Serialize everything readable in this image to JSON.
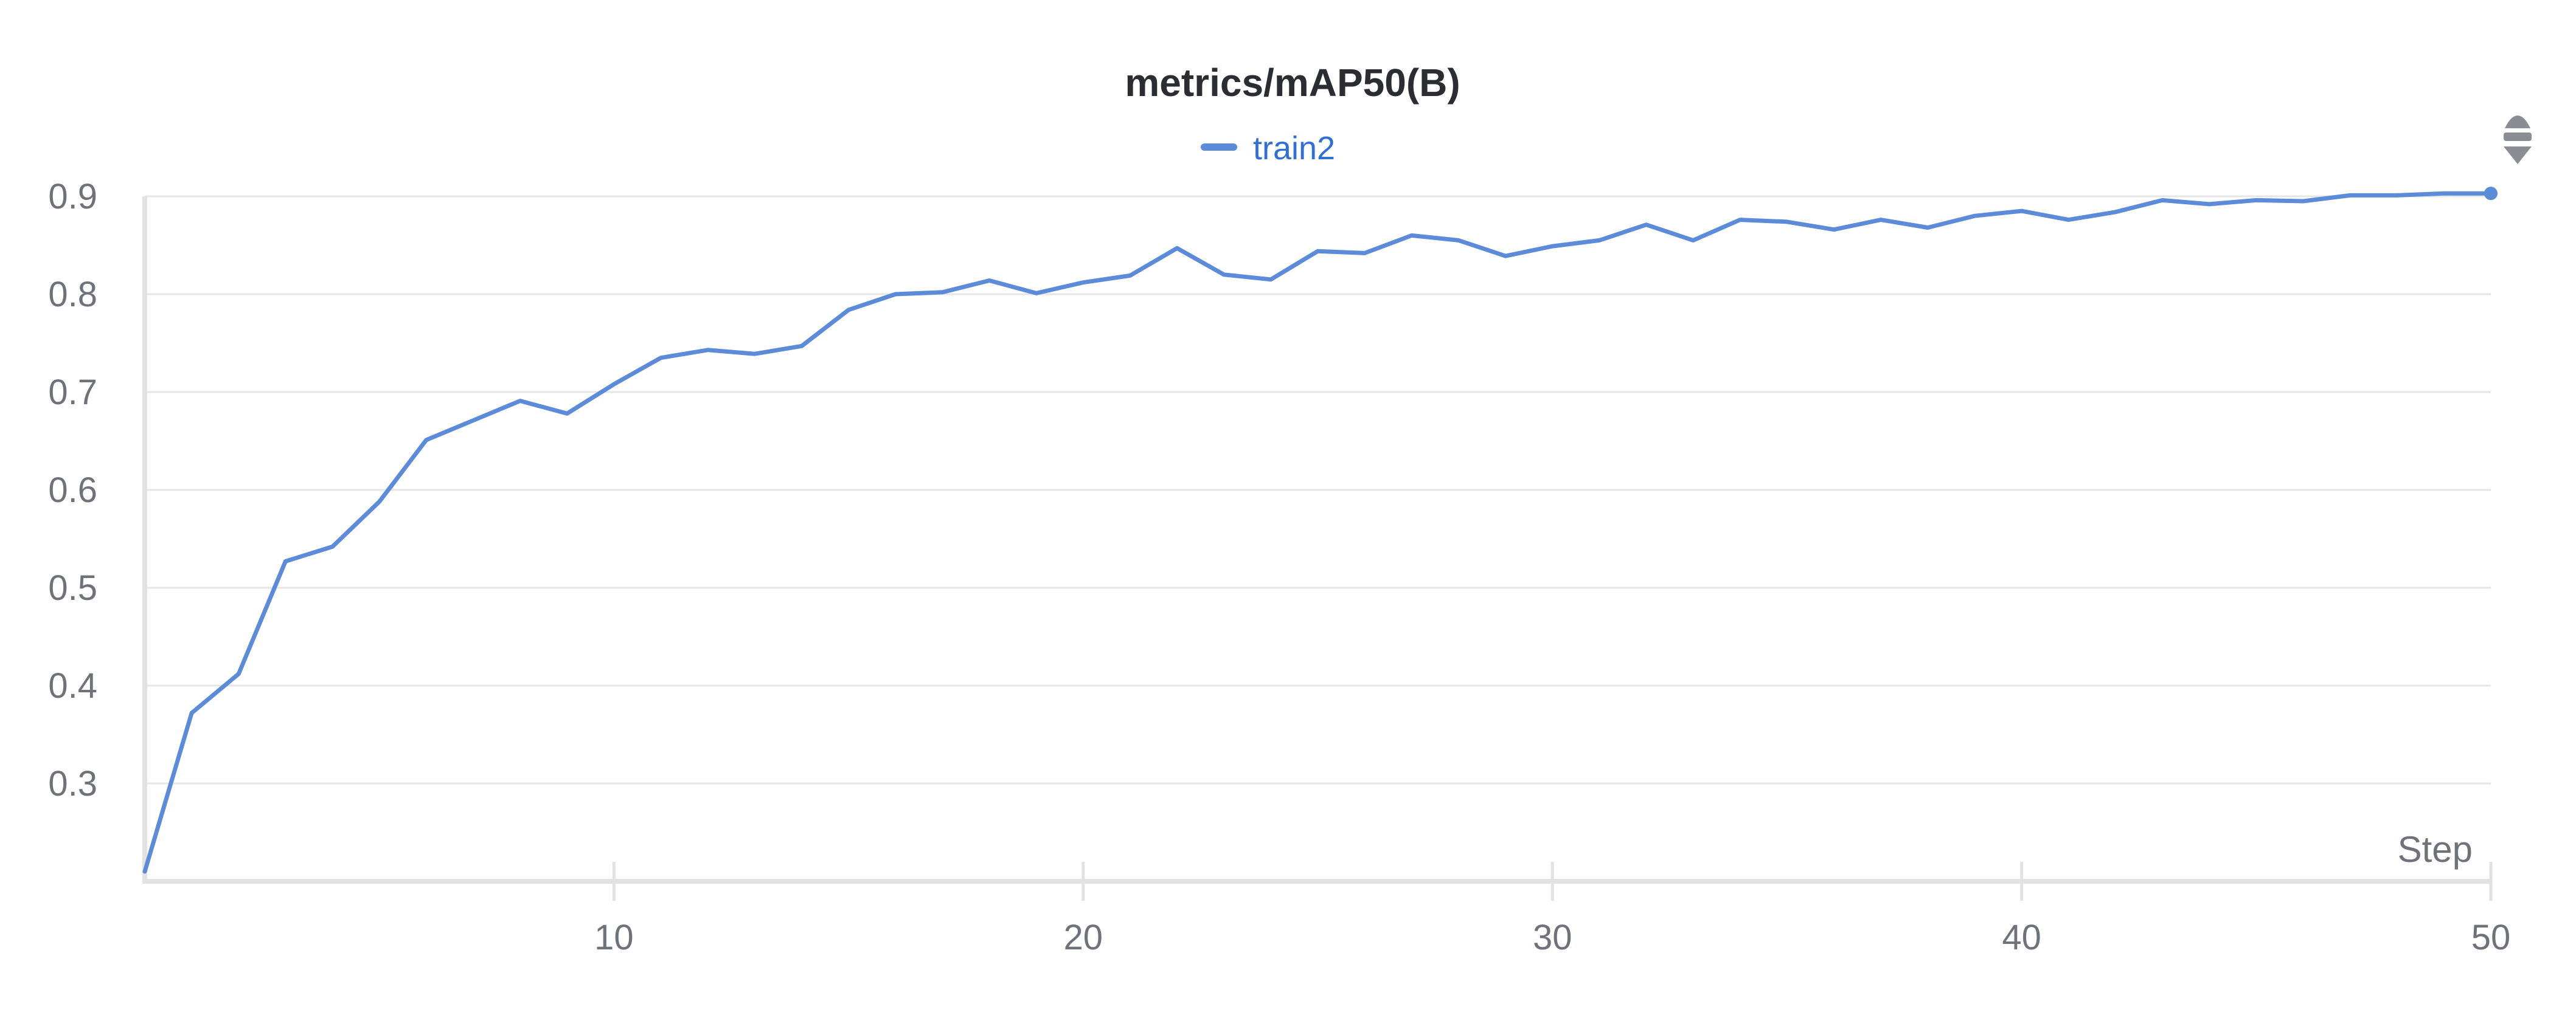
{
  "chart_data": {
    "type": "line",
    "title": "metrics/mAP50(B)",
    "xlabel": "Step",
    "ylabel": "",
    "xlim": [
      0,
      50
    ],
    "ylim": [
      0.2,
      0.9
    ],
    "xticks": [
      10,
      20,
      30,
      40,
      50
    ],
    "yticks": [
      0.3,
      0.4,
      0.5,
      0.6,
      0.7,
      0.8,
      0.9
    ],
    "ytick_labels": [
      "0.3",
      "0.4",
      "0.5",
      "0.6",
      "0.7",
      "0.8",
      "0.9"
    ],
    "xtick_labels": [
      "10",
      "20",
      "30",
      "40",
      "50"
    ],
    "grid": true,
    "legend": "top-center",
    "series": [
      {
        "name": "train2",
        "color": "#5b8bd9",
        "x": [
          0,
          1,
          2,
          3,
          4,
          5,
          6,
          7,
          8,
          9,
          10,
          11,
          12,
          13,
          14,
          15,
          16,
          17,
          18,
          19,
          20,
          21,
          22,
          23,
          24,
          25,
          26,
          27,
          28,
          29,
          30,
          31,
          32,
          33,
          34,
          35,
          36,
          37,
          38,
          39,
          40,
          41,
          42,
          43,
          44,
          45,
          46,
          47,
          48,
          49,
          50
        ],
        "values": [
          0.21,
          0.372,
          0.412,
          0.527,
          0.542,
          0.588,
          0.651,
          0.671,
          0.691,
          0.678,
          0.708,
          0.735,
          0.743,
          0.739,
          0.747,
          0.784,
          0.8,
          0.802,
          0.814,
          0.801,
          0.812,
          0.819,
          0.847,
          0.82,
          0.815,
          0.844,
          0.842,
          0.86,
          0.855,
          0.839,
          0.849,
          0.855,
          0.871,
          0.855,
          0.876,
          0.874,
          0.866,
          0.876,
          0.868,
          0.88,
          0.885,
          0.876,
          0.884,
          0.896,
          0.892,
          0.896,
          0.895,
          0.901,
          0.901,
          0.903,
          0.903
        ]
      }
    ]
  },
  "icons": {
    "menu": "scroll-arrows-icon"
  }
}
